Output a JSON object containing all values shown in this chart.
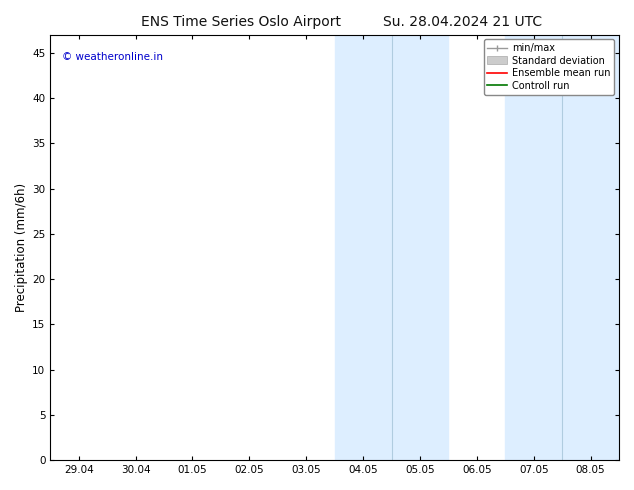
{
  "title_left": "ENS Time Series Oslo Airport",
  "title_right": "Su. 28.04.2024 21 UTC",
  "ylabel": "Precipitation (mm/6h)",
  "xlim_dates": [
    "29.04",
    "30.04",
    "01.05",
    "02.05",
    "03.05",
    "04.05",
    "05.05",
    "06.05",
    "07.05",
    "08.05"
  ],
  "x_tick_positions": [
    0,
    1,
    2,
    3,
    4,
    5,
    6,
    7,
    8,
    9
  ],
  "xlim": [
    -0.5,
    9.5
  ],
  "ylim": [
    0,
    47
  ],
  "yticks": [
    0,
    5,
    10,
    15,
    20,
    25,
    30,
    35,
    40,
    45
  ],
  "bg_color": "#ffffff",
  "plot_bg_color": "#ffffff",
  "shaded_regions": [
    {
      "xmin": 4.5,
      "xmax": 5.5,
      "color": "#ddeeff"
    },
    {
      "xmin": 5.5,
      "xmax": 6.5,
      "color": "#ddeeff"
    },
    {
      "xmin": 7.5,
      "xmax": 8.5,
      "color": "#ddeeff"
    },
    {
      "xmin": 8.5,
      "xmax": 9.5,
      "color": "#ddeeff"
    }
  ],
  "shade_dividers": [
    4.5,
    5.5,
    6.5,
    7.5,
    8.5,
    9.5
  ],
  "watermark": "© weatheronline.in",
  "watermark_color": "#0000cc",
  "legend_labels": [
    "min/max",
    "Standard deviation",
    "Ensemble mean run",
    "Controll run"
  ],
  "legend_colors": [
    "#999999",
    "#cccccc",
    "#ff0000",
    "#007700"
  ],
  "font_family": "DejaVu Sans",
  "title_fontsize": 10,
  "tick_fontsize": 7.5,
  "ylabel_fontsize": 8.5
}
